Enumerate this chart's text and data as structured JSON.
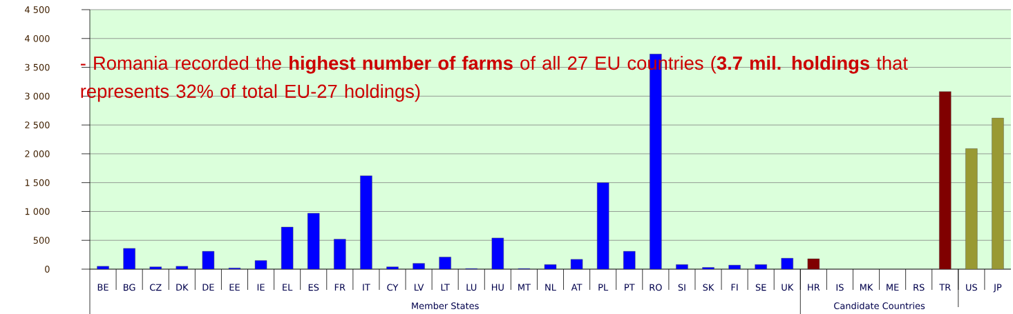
{
  "chart_data": {
    "type": "bar",
    "categories": [
      "BE",
      "BG",
      "CZ",
      "DK",
      "DE",
      "EE",
      "IE",
      "EL",
      "ES",
      "FR",
      "IT",
      "CY",
      "LV",
      "LT",
      "LU",
      "HU",
      "MT",
      "NL",
      "AT",
      "PL",
      "PT",
      "RO",
      "SI",
      "SK",
      "FI",
      "SE",
      "UK",
      "HR",
      "IS",
      "MK",
      "ME",
      "RS",
      "TR",
      "US",
      "JP"
    ],
    "values": [
      50,
      360,
      40,
      50,
      310,
      20,
      150,
      730,
      970,
      520,
      1620,
      40,
      100,
      210,
      10,
      540,
      10,
      80,
      170,
      1500,
      310,
      3730,
      80,
      30,
      70,
      80,
      190,
      180,
      null,
      null,
      null,
      null,
      3080,
      2090,
      2620
    ],
    "colors": [
      "#0000ff",
      "#0000ff",
      "#0000ff",
      "#0000ff",
      "#0000ff",
      "#0000ff",
      "#0000ff",
      "#0000ff",
      "#0000ff",
      "#0000ff",
      "#0000ff",
      "#0000ff",
      "#0000ff",
      "#0000ff",
      "#0000ff",
      "#0000ff",
      "#0000ff",
      "#0000ff",
      "#0000ff",
      "#0000ff",
      "#0000ff",
      "#0000ff",
      "#0000ff",
      "#0000ff",
      "#0000ff",
      "#0000ff",
      "#0000ff",
      "#800000",
      "#800000",
      "#800000",
      "#800000",
      "#800000",
      "#800000",
      "#999933",
      "#999933"
    ],
    "ylim": [
      0,
      4500
    ],
    "yticks": [
      0,
      500,
      {
        "value": 1000,
        "label": "1 000"
      },
      {
        "value": 1500,
        "label": "1 500"
      },
      {
        "value": 2000,
        "label": "2 000"
      },
      {
        "value": 2500,
        "label": "2 500"
      },
      {
        "value": 3000,
        "label": "3 000"
      },
      {
        "value": 3500,
        "label": "3 500"
      },
      {
        "value": 4000,
        "label": "4 000"
      },
      {
        "value": 4500,
        "label": "4 500"
      }
    ],
    "grid": "y",
    "annotations": [
      "- Romania recorded the **highest number of farms** of all 27 EU countries (**3.7 mil. holdings** that represents 32% of total EU-27 holdings)",
      "Member States",
      "Candidate Countries"
    ]
  }
}
